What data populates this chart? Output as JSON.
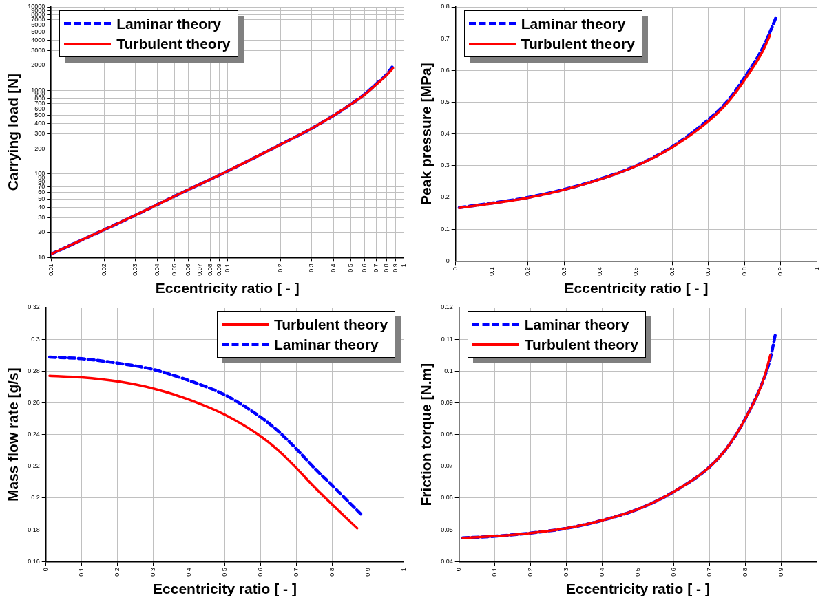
{
  "chart_data": [
    {
      "type": "line",
      "xlabel": "Eccentricity ratio [ - ]",
      "ylabel": "Carrying load [N]",
      "log": "xy",
      "grid": true,
      "legend": "top left",
      "marker": "none",
      "xlim": [
        0.01,
        1
      ],
      "ylim": [
        10,
        10000
      ],
      "xticks": [
        0.01,
        0.02,
        0.03,
        0.04,
        0.05,
        0.06,
        0.07,
        0.08,
        0.09,
        0.1,
        0.2,
        0.3,
        0.4,
        0.5,
        0.6,
        0.7,
        0.8,
        0.9,
        1
      ],
      "yticks": [
        10,
        20,
        30,
        40,
        50,
        60,
        70,
        80,
        90,
        100,
        200,
        300,
        400,
        500,
        600,
        700,
        800,
        900,
        1000,
        2000,
        3000,
        4000,
        5000,
        6000,
        7000,
        8000,
        9000,
        10000
      ],
      "series": [
        {
          "name": "Laminar theory",
          "color": "#0000ff",
          "line_style": "dashed",
          "x": [
            0.01,
            0.02,
            0.03,
            0.05,
            0.1,
            0.2,
            0.3,
            0.4,
            0.5,
            0.6,
            0.7,
            0.8,
            0.86
          ],
          "values": [
            11,
            21.5,
            32,
            54,
            108,
            225,
            350,
            500,
            680,
            900,
            1200,
            1550,
            1900
          ]
        },
        {
          "name": "Turbulent theory",
          "color": "#ff0000",
          "line_style": "solid",
          "x": [
            0.01,
            0.02,
            0.03,
            0.05,
            0.1,
            0.2,
            0.3,
            0.4,
            0.5,
            0.6,
            0.7,
            0.8,
            0.87
          ],
          "values": [
            11,
            21.5,
            32,
            54,
            108,
            225,
            350,
            500,
            680,
            890,
            1180,
            1520,
            1850
          ]
        }
      ]
    },
    {
      "type": "line",
      "xlabel": "Eccentricity ratio [ - ]",
      "ylabel": "Peak pressure [MPa]",
      "grid": true,
      "legend": "top left",
      "marker": "none",
      "xlim": [
        0,
        1
      ],
      "ylim": [
        0,
        0.8
      ],
      "xticks": [
        0,
        0.1,
        0.2,
        0.3,
        0.4,
        0.5,
        0.6,
        0.7,
        0.8,
        0.9,
        1
      ],
      "yticks": [
        0,
        0.1,
        0.2,
        0.3,
        0.4,
        0.5,
        0.6,
        0.7,
        0.8
      ],
      "series": [
        {
          "name": "Laminar theory",
          "color": "#0000ff",
          "line_style": "dashed",
          "x": [
            0.01,
            0.1,
            0.2,
            0.3,
            0.4,
            0.5,
            0.6,
            0.7,
            0.75,
            0.8,
            0.85,
            0.87,
            0.89
          ],
          "values": [
            0.168,
            0.182,
            0.2,
            0.225,
            0.258,
            0.3,
            0.36,
            0.445,
            0.5,
            0.578,
            0.67,
            0.72,
            0.775
          ]
        },
        {
          "name": "Turbulent theory",
          "color": "#ff0000",
          "line_style": "solid",
          "x": [
            0.01,
            0.1,
            0.2,
            0.3,
            0.4,
            0.5,
            0.6,
            0.7,
            0.75,
            0.8,
            0.85,
            0.87
          ],
          "values": [
            0.167,
            0.181,
            0.199,
            0.224,
            0.257,
            0.299,
            0.358,
            0.44,
            0.495,
            0.57,
            0.66,
            0.71
          ]
        }
      ]
    },
    {
      "type": "line",
      "xlabel": "Eccentricity ratio [ - ]",
      "ylabel": "Mass flow rate [g/s]",
      "grid": true,
      "legend": "top right",
      "marker": "none",
      "xlim": [
        0,
        1
      ],
      "ylim": [
        0.16,
        0.32
      ],
      "xticks": [
        0,
        0.1,
        0.2,
        0.3,
        0.4,
        0.5,
        0.6,
        0.7,
        0.8,
        0.9,
        1
      ],
      "yticks": [
        0.16,
        0.18,
        0.2,
        0.22,
        0.24,
        0.26,
        0.28,
        0.3,
        0.32
      ],
      "series": [
        {
          "name": "Turbulent theory",
          "color": "#ff0000",
          "line_style": "solid",
          "x": [
            0.01,
            0.1,
            0.2,
            0.3,
            0.4,
            0.5,
            0.6,
            0.65,
            0.7,
            0.75,
            0.8,
            0.87
          ],
          "values": [
            0.277,
            0.276,
            0.2735,
            0.269,
            0.262,
            0.2525,
            0.239,
            0.23,
            0.219,
            0.207,
            0.196,
            0.181
          ]
        },
        {
          "name": "Laminar theory",
          "color": "#0000ff",
          "line_style": "dashed",
          "x": [
            0.01,
            0.1,
            0.2,
            0.3,
            0.4,
            0.5,
            0.6,
            0.65,
            0.7,
            0.75,
            0.8,
            0.88
          ],
          "values": [
            0.2888,
            0.2878,
            0.285,
            0.281,
            0.274,
            0.265,
            0.251,
            0.242,
            0.231,
            0.219,
            0.208,
            0.19
          ]
        }
      ]
    },
    {
      "type": "line",
      "xlabel": "Eccentricity ratio [ - ]",
      "ylabel": "Friction torque [N.m]",
      "grid": true,
      "legend": "top left",
      "marker": "none",
      "xlim": [
        0,
        1
      ],
      "ylim": [
        0.04,
        0.12
      ],
      "xticks": [
        0,
        0.1,
        0.2,
        0.3,
        0.4,
        0.5,
        0.6,
        0.7,
        0.8,
        0.9,
        {
          "value": 1,
          "label": null
        }
      ],
      "yticks": [
        0.04,
        0.05,
        0.06,
        0.07,
        0.08,
        0.09,
        0.1,
        0.11,
        0.12
      ],
      "series": [
        {
          "name": "Laminar theory",
          "color": "#0000ff",
          "line_style": "dashed",
          "x": [
            0.01,
            0.1,
            0.2,
            0.3,
            0.4,
            0.5,
            0.6,
            0.7,
            0.75,
            0.8,
            0.85,
            0.87,
            0.885
          ],
          "values": [
            0.0475,
            0.048,
            0.049,
            0.0505,
            0.053,
            0.0565,
            0.062,
            0.0698,
            0.076,
            0.085,
            0.097,
            0.104,
            0.112
          ]
        },
        {
          "name": "Turbulent theory",
          "color": "#ff0000",
          "line_style": "solid",
          "x": [
            0.01,
            0.1,
            0.2,
            0.3,
            0.4,
            0.5,
            0.6,
            0.7,
            0.75,
            0.8,
            0.85,
            0.87
          ],
          "values": [
            0.0475,
            0.048,
            0.049,
            0.0505,
            0.053,
            0.0565,
            0.062,
            0.0698,
            0.076,
            0.085,
            0.097,
            0.105
          ]
        }
      ]
    }
  ]
}
